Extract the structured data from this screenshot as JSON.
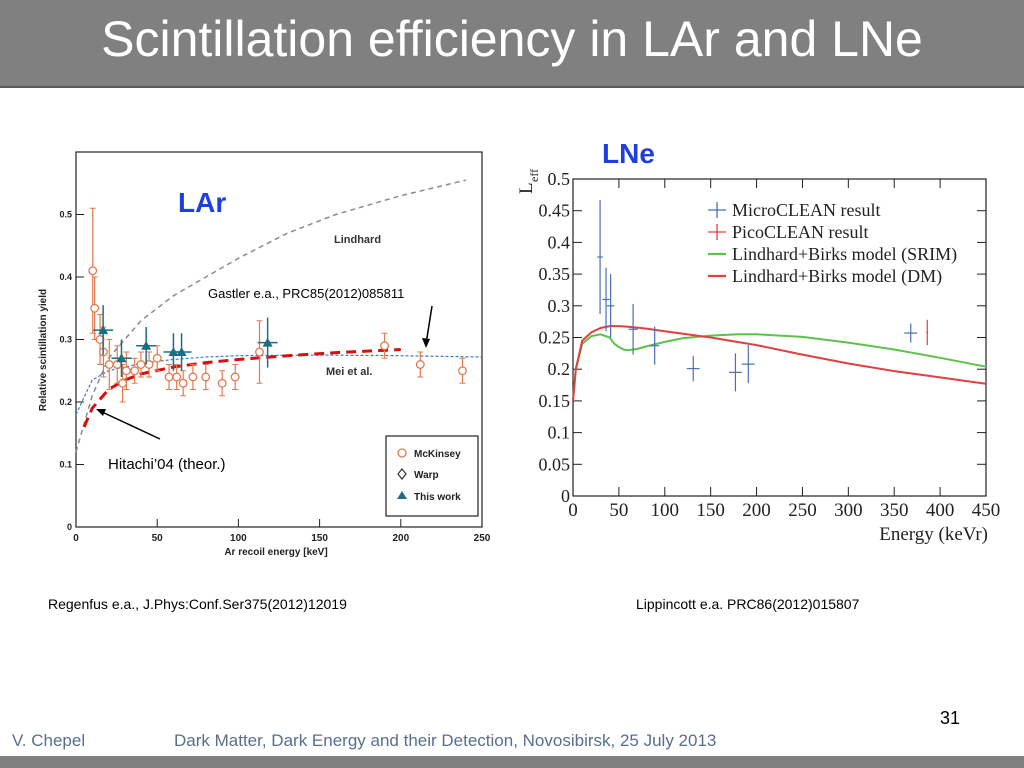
{
  "slide": {
    "title": "Scintillation efficiency in LAr and LNe",
    "number": "31",
    "footer_author": "V. Chepel",
    "footer_event": "Dark Matter, Dark Energy and their Detection, Novosibirsk, 25 July 2013",
    "caption_left": "Regenfus e.a., J.Phys:Conf.Ser375(2012)12019",
    "caption_right": "Lippincott e.a. PRC86(2012)015807"
  },
  "colors": {
    "title_bar": "#808080",
    "footer_text": "#5a6e8c",
    "label_blue": "#1f3fdc"
  },
  "chart_data": [
    {
      "type": "scatter",
      "label": "LAr",
      "xlabel": "Ar recoil energy [keV]",
      "ylabel": "Relative scintillation yield",
      "xlim": [
        0,
        250
      ],
      "ylim": [
        0,
        0.6
      ],
      "xticks": [
        0,
        50,
        100,
        150,
        200,
        250
      ],
      "yticks": [
        0,
        0.1,
        0.2,
        0.3,
        0.4,
        0.5
      ],
      "legend_position": "bottom-right",
      "annotations": {
        "lindhard": "Lindhard",
        "mei": "Mei et al.",
        "gastler": "Gastler e.a., PRC85(2012)085811",
        "hitachi": "Hitachi’04 (theor.)"
      },
      "series": [
        {
          "name": "McKinsey",
          "marker": "circle",
          "color": "#e07a50",
          "points": [
            [
              10.3,
              0.41,
              0.1
            ],
            [
              11.5,
              0.35,
              0.05
            ],
            [
              14.8,
              0.3,
              0.04
            ],
            [
              16.9,
              0.28,
              0.04
            ],
            [
              20.5,
              0.26,
              0.04
            ],
            [
              25.4,
              0.26,
              0.03
            ],
            [
              28.7,
              0.23,
              0.03
            ],
            [
              31,
              0.25,
              0.03
            ],
            [
              36.1,
              0.25,
              0.02
            ],
            [
              40,
              0.26,
              0.02
            ],
            [
              45,
              0.26,
              0.02
            ],
            [
              50,
              0.27,
              0.02
            ],
            [
              57.3,
              0.24,
              0.02
            ],
            [
              62,
              0.24,
              0.02
            ],
            [
              66,
              0.23,
              0.02
            ],
            [
              72,
              0.24,
              0.02
            ],
            [
              79.9,
              0.24,
              0.02
            ],
            [
              90,
              0.23,
              0.02
            ],
            [
              98,
              0.24,
              0.02
            ],
            [
              113,
              0.28,
              0.05
            ],
            [
              190,
              0.29,
              0.02
            ],
            [
              212,
              0.26,
              0.02
            ],
            [
              238,
              0.25,
              0.02
            ]
          ]
        },
        {
          "name": "Warp",
          "marker": "diamond",
          "color": "#333333",
          "points": []
        },
        {
          "name": "This work",
          "marker": "triangle",
          "color": "#1e6e82",
          "points": [
            [
              16.7,
              0.315,
              0.04
            ],
            [
              28,
              0.27,
              0.03
            ],
            [
              43.2,
              0.29,
              0.03
            ],
            [
              60,
              0.28,
              0.03
            ],
            [
              65,
              0.28,
              0.03
            ],
            [
              118,
              0.295,
              0.04
            ]
          ]
        }
      ],
      "curves": [
        {
          "name": "Lindhard",
          "style": "dashed-gray",
          "x": [
            0,
            10,
            20,
            40,
            60,
            80,
            100,
            130,
            160,
            200,
            240
          ],
          "y": [
            0.12,
            0.21,
            0.27,
            0.33,
            0.37,
            0.4,
            0.43,
            0.47,
            0.5,
            0.53,
            0.555
          ]
        },
        {
          "name": "Mei et al.",
          "style": "dotted-blue",
          "x": [
            0,
            10,
            20,
            40,
            60,
            80,
            100,
            150,
            200,
            250
          ],
          "y": [
            0.18,
            0.235,
            0.25,
            0.262,
            0.268,
            0.272,
            0.274,
            0.275,
            0.274,
            0.272
          ]
        },
        {
          "name": "Gastler",
          "style": "dashed-red",
          "x": [
            5,
            10,
            20,
            30,
            40,
            60,
            80,
            100,
            130,
            160,
            200
          ],
          "y": [
            0.16,
            0.19,
            0.22,
            0.235,
            0.245,
            0.256,
            0.263,
            0.268,
            0.274,
            0.279,
            0.284
          ]
        }
      ]
    },
    {
      "type": "scatter",
      "label": "LNe",
      "xlabel": "Energy (keVr)",
      "ylabel": "L",
      "ylabel_sub": "eff",
      "xlim": [
        0,
        450
      ],
      "ylim": [
        0,
        0.5
      ],
      "xticks": [
        0,
        50,
        100,
        150,
        200,
        250,
        300,
        350,
        400,
        450
      ],
      "yticks": [
        0,
        0.05,
        0.1,
        0.15,
        0.2,
        0.25,
        0.3,
        0.35,
        0.4,
        0.45,
        0.5
      ],
      "legend": [
        {
          "name": "MicroCLEAN result",
          "color": "#4a6fb5",
          "kind": "cross"
        },
        {
          "name": "PicoCLEAN result",
          "color": "#e04040",
          "kind": "cross"
        },
        {
          "name": "Lindhard+Birks model (SRIM)",
          "color": "#5cc24a",
          "kind": "line"
        },
        {
          "name": "Lindhard+Birks model (DM)",
          "color": "#e04040",
          "kind": "line"
        }
      ],
      "series": [
        {
          "name": "MicroCLEAN result",
          "color": "#4a6fb5",
          "points": [
            [
              29.5,
              0.377,
              0.09,
              3
            ],
            [
              36,
              0.31,
              0.05,
              4
            ],
            [
              41,
              0.3,
              0.05,
              4
            ],
            [
              65.5,
              0.263,
              0.04,
              5
            ],
            [
              89,
              0.237,
              0.03,
              5
            ],
            [
              131,
              0.201,
              0.02,
              7
            ],
            [
              177,
              0.195,
              0.03,
              7
            ],
            [
              191,
              0.208,
              0.03,
              7
            ],
            [
              368,
              0.257,
              0.015,
              7
            ]
          ]
        },
        {
          "name": "PicoCLEAN result",
          "color": "#e04040",
          "points": [
            [
              386,
              0.258,
              0.02,
              1
            ]
          ]
        }
      ],
      "curves": [
        {
          "name": "Lindhard+Birks model (SRIM)",
          "color": "#5cc24a",
          "x": [
            0,
            3,
            10,
            20,
            30,
            40,
            45,
            50,
            55,
            60,
            70,
            80,
            100,
            120,
            150,
            180,
            200,
            250,
            300,
            350,
            400,
            450
          ],
          "y": [
            0.15,
            0.2,
            0.24,
            0.252,
            0.255,
            0.25,
            0.24,
            0.235,
            0.231,
            0.23,
            0.232,
            0.236,
            0.243,
            0.249,
            0.253,
            0.255,
            0.255,
            0.251,
            0.242,
            0.231,
            0.218,
            0.204
          ]
        },
        {
          "name": "Lindhard+Birks model (DM)",
          "color": "#e04040",
          "x": [
            0,
            3,
            10,
            20,
            30,
            40,
            50,
            60,
            80,
            100,
            150,
            200,
            250,
            300,
            350,
            400,
            450
          ],
          "y": [
            0.15,
            0.2,
            0.245,
            0.258,
            0.265,
            0.268,
            0.268,
            0.267,
            0.264,
            0.26,
            0.25,
            0.238,
            0.223,
            0.209,
            0.197,
            0.187,
            0.177
          ]
        }
      ]
    }
  ]
}
